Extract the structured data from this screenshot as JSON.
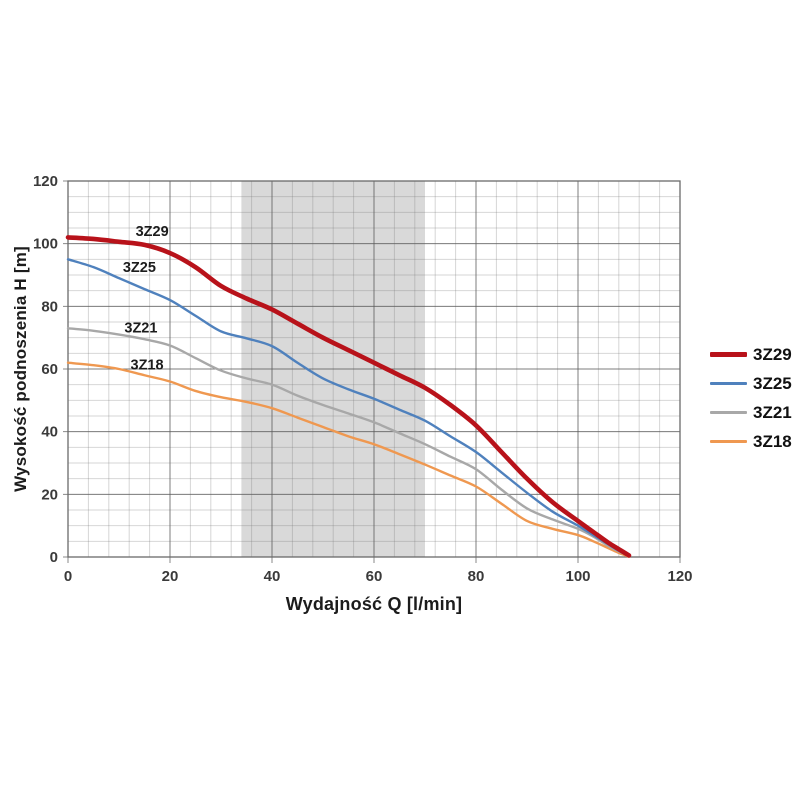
{
  "chart_data": {
    "type": "line",
    "title": "",
    "xlabel": "Wydajność Q [l/min]",
    "ylabel": "Wysokość podnoszenia H [m]",
    "xlim": [
      0,
      120
    ],
    "ylim": [
      0,
      120
    ],
    "x_ticks": [
      0,
      20,
      40,
      60,
      80,
      100,
      120
    ],
    "y_ticks": [
      0,
      20,
      40,
      60,
      80,
      100,
      120
    ],
    "x_minor_step": 4,
    "y_minor_step": 5,
    "grid": "major+minor",
    "legend_position": "right-outside",
    "highlight_band": {
      "x_from": 34,
      "x_to": 70,
      "color": "#d9d9d9"
    },
    "frame_color": "#6a6a6a",
    "grid_major_color": "rgba(90,90,90,0.72)",
    "grid_minor_color": "rgba(120,120,120,0.30)",
    "series": [
      {
        "name": "3Z29",
        "color": "#b8121a",
        "line_width": 4.6,
        "label_at": {
          "q": 16.5,
          "h": 104
        },
        "points": [
          [
            0,
            102
          ],
          [
            5,
            101.5
          ],
          [
            10,
            100.6
          ],
          [
            15,
            99.6
          ],
          [
            20,
            97
          ],
          [
            25,
            92.5
          ],
          [
            30,
            86.5
          ],
          [
            35,
            82.5
          ],
          [
            40,
            79
          ],
          [
            45,
            74.5
          ],
          [
            50,
            70
          ],
          [
            55,
            66
          ],
          [
            60,
            62
          ],
          [
            65,
            58
          ],
          [
            70,
            54
          ],
          [
            75,
            48.5
          ],
          [
            80,
            42
          ],
          [
            85,
            33.5
          ],
          [
            90,
            25
          ],
          [
            95,
            17.5
          ],
          [
            100,
            11.5
          ],
          [
            103,
            8
          ],
          [
            106,
            4.5
          ],
          [
            108,
            2.5
          ],
          [
            110,
            0.5
          ]
        ]
      },
      {
        "name": "3Z25",
        "color": "#4f81bd",
        "line_width": 2.4,
        "label_at": {
          "q": 14,
          "h": 92.5
        },
        "points": [
          [
            0,
            95
          ],
          [
            5,
            92.5
          ],
          [
            10,
            89
          ],
          [
            15,
            85.5
          ],
          [
            20,
            82
          ],
          [
            25,
            77
          ],
          [
            30,
            72
          ],
          [
            35,
            69.8
          ],
          [
            40,
            67.3
          ],
          [
            45,
            62
          ],
          [
            50,
            57
          ],
          [
            55,
            53.5
          ],
          [
            60,
            50.5
          ],
          [
            65,
            47
          ],
          [
            70,
            43.5
          ],
          [
            75,
            38.5
          ],
          [
            80,
            33.5
          ],
          [
            85,
            27
          ],
          [
            90,
            20.5
          ],
          [
            95,
            14.5
          ],
          [
            100,
            10
          ],
          [
            103,
            7
          ],
          [
            106,
            4
          ],
          [
            108,
            2
          ],
          [
            110,
            0.4
          ]
        ]
      },
      {
        "name": "3Z21",
        "color": "#a8a8a8",
        "line_width": 2.4,
        "label_at": {
          "q": 14.3,
          "h": 73.2
        },
        "points": [
          [
            0,
            73
          ],
          [
            5,
            72.2
          ],
          [
            10,
            71
          ],
          [
            15,
            69.5
          ],
          [
            20,
            67.5
          ],
          [
            25,
            63.5
          ],
          [
            30,
            59.5
          ],
          [
            35,
            57
          ],
          [
            40,
            55
          ],
          [
            45,
            51.5
          ],
          [
            50,
            48.5
          ],
          [
            55,
            45.8
          ],
          [
            60,
            43
          ],
          [
            65,
            39.5
          ],
          [
            70,
            36
          ],
          [
            75,
            32
          ],
          [
            80,
            28
          ],
          [
            85,
            21.5
          ],
          [
            90,
            15.5
          ],
          [
            95,
            12
          ],
          [
            100,
            9
          ],
          [
            103,
            6.5
          ],
          [
            106,
            3.5
          ],
          [
            108,
            1.8
          ],
          [
            110,
            0.3
          ]
        ]
      },
      {
        "name": "3Z18",
        "color": "#ef9850",
        "line_width": 2.4,
        "label_at": {
          "q": 15.5,
          "h": 61.5
        },
        "points": [
          [
            0,
            62
          ],
          [
            5,
            61.2
          ],
          [
            10,
            60
          ],
          [
            15,
            58
          ],
          [
            20,
            56
          ],
          [
            25,
            53
          ],
          [
            30,
            51
          ],
          [
            35,
            49.5
          ],
          [
            40,
            47.5
          ],
          [
            45,
            44.5
          ],
          [
            50,
            41.5
          ],
          [
            55,
            38.5
          ],
          [
            60,
            36
          ],
          [
            65,
            32.8
          ],
          [
            70,
            29.5
          ],
          [
            75,
            26
          ],
          [
            80,
            22.5
          ],
          [
            85,
            17
          ],
          [
            90,
            11.5
          ],
          [
            95,
            9
          ],
          [
            100,
            7
          ],
          [
            103,
            5
          ],
          [
            106,
            2.8
          ],
          [
            108,
            1.3
          ],
          [
            110,
            0.1
          ]
        ]
      }
    ]
  }
}
